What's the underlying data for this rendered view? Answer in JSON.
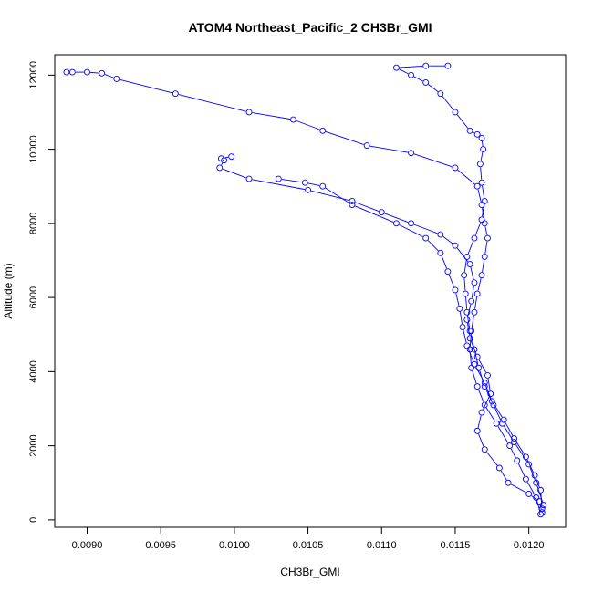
{
  "chart_data": {
    "type": "line",
    "title": "ATOM4 Northeast_Pacific_2 CH3Br_GMI",
    "xlabel": "CH3Br_GMI",
    "ylabel": "Altitude (m)",
    "xlim": [
      0.00878,
      0.01225
    ],
    "ylim": [
      -200,
      12550
    ],
    "xticks": [
      0.009,
      0.0095,
      0.01,
      0.0105,
      0.011,
      0.0115,
      0.012
    ],
    "xtick_labels": [
      "0.0090",
      "0.0095",
      "0.0100",
      "0.0105",
      "0.0110",
      "0.0115",
      "0.0120"
    ],
    "yticks": [
      0,
      2000,
      4000,
      6000,
      8000,
      10000,
      12000
    ],
    "ytick_labels": [
      "0",
      "2000",
      "4000",
      "6000",
      "8000",
      "10000",
      "12000"
    ],
    "grid": false,
    "series_color": "#0000ff",
    "marker": "open-circle",
    "series": [
      {
        "points": [
          [
            0.01209,
            200
          ],
          [
            0.01207,
            500
          ],
          [
            0.012,
            700
          ],
          [
            0.01186,
            1000
          ],
          [
            0.0118,
            1400
          ],
          [
            0.0117,
            1900
          ],
          [
            0.01165,
            2400
          ],
          [
            0.01168,
            2900
          ],
          [
            0.01174,
            3400
          ],
          [
            0.01172,
            3900
          ],
          [
            0.01165,
            4400
          ],
          [
            0.0116,
            4900
          ],
          [
            0.01158,
            5400
          ],
          [
            0.01161,
            5900
          ],
          [
            0.01163,
            6400
          ],
          [
            0.0116,
            6900
          ],
          [
            0.0115,
            7400
          ],
          [
            0.0114,
            7700
          ],
          [
            0.0112,
            8000
          ],
          [
            0.011,
            8300
          ],
          [
            0.0108,
            8600
          ],
          [
            0.0105,
            8900
          ],
          [
            0.0101,
            9200
          ],
          [
            0.0099,
            9500
          ],
          [
            0.00993,
            9700
          ],
          [
            0.00991,
            9750
          ],
          [
            0.00998,
            9800
          ]
        ]
      },
      {
        "points": [
          [
            0.01209,
            300
          ],
          [
            0.01208,
            800
          ],
          [
            0.01204,
            1200
          ],
          [
            0.01198,
            1700
          ],
          [
            0.0119,
            2200
          ],
          [
            0.01183,
            2700
          ],
          [
            0.01175,
            3200
          ],
          [
            0.0117,
            3700
          ],
          [
            0.01163,
            4200
          ],
          [
            0.01158,
            4700
          ],
          [
            0.01155,
            5200
          ],
          [
            0.01153,
            5700
          ],
          [
            0.0115,
            6200
          ],
          [
            0.01145,
            6700
          ],
          [
            0.0114,
            7200
          ],
          [
            0.0113,
            7600
          ],
          [
            0.0111,
            8000
          ],
          [
            0.0108,
            8500
          ],
          [
            0.0106,
            9000
          ],
          [
            0.01048,
            9100
          ],
          [
            0.0103,
            9200
          ]
        ]
      },
      {
        "points": [
          [
            0.01208,
            150
          ],
          [
            0.01205,
            600
          ],
          [
            0.01198,
            1100
          ],
          [
            0.01192,
            1600
          ],
          [
            0.01187,
            2000
          ],
          [
            0.01178,
            2600
          ],
          [
            0.0117,
            3100
          ],
          [
            0.01165,
            3600
          ],
          [
            0.01161,
            4100
          ],
          [
            0.0116,
            4600
          ],
          [
            0.01161,
            5100
          ],
          [
            0.01163,
            5600
          ],
          [
            0.01165,
            6100
          ],
          [
            0.01168,
            6600
          ],
          [
            0.0117,
            7100
          ],
          [
            0.01172,
            7600
          ],
          [
            0.0117,
            8000
          ],
          [
            0.01168,
            8500
          ],
          [
            0.01165,
            9000
          ],
          [
            0.0115,
            9500
          ],
          [
            0.0112,
            9900
          ],
          [
            0.0109,
            10100
          ],
          [
            0.0106,
            10500
          ],
          [
            0.0104,
            10800
          ],
          [
            0.0101,
            11000
          ],
          [
            0.0096,
            11500
          ],
          [
            0.0092,
            11900
          ],
          [
            0.0091,
            12050
          ],
          [
            0.009,
            12080
          ],
          [
            0.0089,
            12080
          ],
          [
            0.00886,
            12080
          ]
        ]
      },
      {
        "points": [
          [
            0.0121,
            400
          ],
          [
            0.01205,
            1000
          ],
          [
            0.012,
            1500
          ],
          [
            0.0119,
            2100
          ],
          [
            0.01182,
            2600
          ],
          [
            0.01176,
            3100
          ],
          [
            0.0117,
            3600
          ],
          [
            0.01166,
            4100
          ],
          [
            0.01163,
            4600
          ],
          [
            0.0116,
            5100
          ],
          [
            0.01158,
            5600
          ],
          [
            0.01157,
            6100
          ],
          [
            0.01156,
            6600
          ],
          [
            0.01158,
            7100
          ],
          [
            0.01163,
            7600
          ],
          [
            0.01168,
            8100
          ],
          [
            0.0117,
            8600
          ],
          [
            0.01168,
            9100
          ],
          [
            0.01167,
            9600
          ],
          [
            0.01169,
            10000
          ],
          [
            0.01168,
            10300
          ],
          [
            0.01165,
            10400
          ],
          [
            0.0116,
            10500
          ],
          [
            0.0115,
            11000
          ],
          [
            0.0114,
            11500
          ],
          [
            0.0113,
            11800
          ],
          [
            0.0112,
            12000
          ],
          [
            0.0111,
            12200
          ],
          [
            0.0113,
            12250
          ],
          [
            0.01145,
            12250
          ]
        ]
      }
    ]
  }
}
